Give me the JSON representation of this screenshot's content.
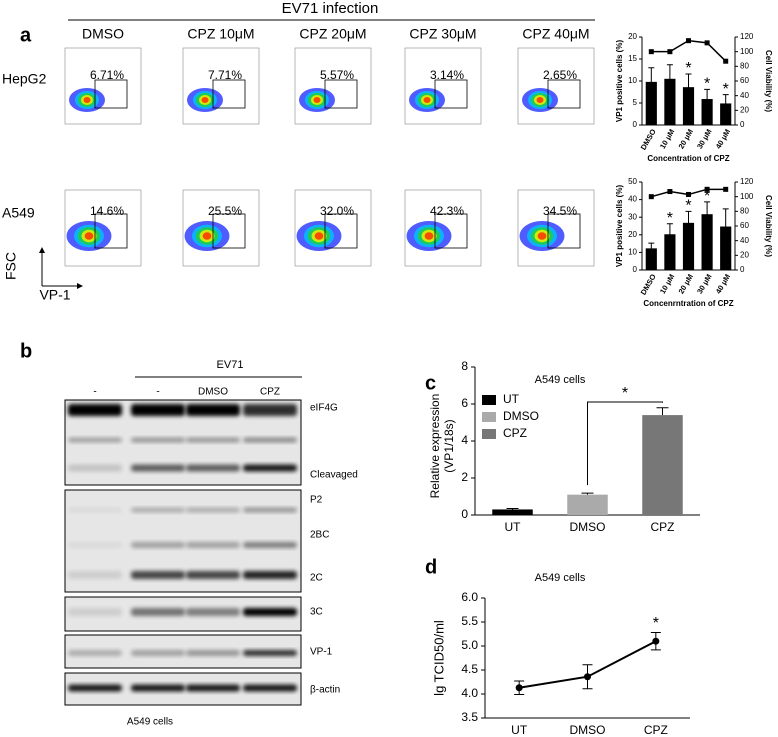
{
  "panel_labels": [
    "a",
    "b",
    "c",
    "d"
  ],
  "flow": {
    "header": "EV71 infection",
    "conditions": [
      "DMSO",
      "CPZ 10μM",
      "CPZ 20μM",
      "CPZ 30μM",
      "CPZ 40μM"
    ],
    "rows": [
      {
        "cell": "HepG2",
        "percents": [
          "6.71%",
          "7.71%",
          "5.57%",
          "3.14%",
          "2.65%"
        ]
      },
      {
        "cell": "A549",
        "percents": [
          "14.6%",
          "25.5%",
          "32.0%",
          "42.3%",
          "34.5%"
        ]
      }
    ],
    "y_axis": "FSC",
    "x_axis": "VP-1"
  },
  "blot": {
    "group": "EV71",
    "lanes": [
      "-",
      "-",
      "DMSO",
      "CPZ"
    ],
    "bands": [
      "eIF4G",
      "Cleavaged",
      "P2",
      "2BC",
      "2C",
      "3C",
      "VP-1",
      "β-actin"
    ],
    "caption": "A549 cells"
  },
  "chart_data": [
    {
      "type": "bar_line",
      "categories": [
        "DMSO",
        "10 μM",
        "20 μM",
        "30 μM",
        "40 μM"
      ],
      "xlabel": "Concentration of CPZ",
      "ylabel": "VP1 positive cells (%)",
      "y2label": "Cell Viability (%)",
      "ylim": [
        0,
        20
      ],
      "yticks": [
        0,
        5,
        10,
        15,
        20
      ],
      "y2lim": [
        0,
        120
      ],
      "y2ticks": [
        0,
        20,
        40,
        60,
        80,
        100,
        120
      ],
      "series": [
        {
          "type": "bar",
          "color": "#000000",
          "values": [
            9.8,
            10.5,
            8.6,
            5.9,
            4.9
          ],
          "errors": [
            3.2,
            3.2,
            3.0,
            2.2,
            2.0
          ],
          "significance": [
            null,
            null,
            "*",
            "*",
            "*"
          ]
        },
        {
          "type": "line",
          "axis": "y2",
          "color": "#000000",
          "values": [
            100,
            100,
            115,
            112,
            87
          ]
        }
      ]
    },
    {
      "type": "bar_line",
      "categories": [
        "DMSO",
        "10 μM",
        "20 μM",
        "30 μM",
        "40 μM"
      ],
      "xlabel": "Concenrntration of CPZ",
      "ylabel": "VP1 positive cells (%)",
      "y2label": "Cell Viability (%)",
      "ylim": [
        0,
        50
      ],
      "yticks": [
        0,
        10,
        20,
        30,
        40,
        50
      ],
      "y2lim": [
        0,
        120
      ],
      "y2ticks": [
        0,
        20,
        40,
        60,
        80,
        100,
        120
      ],
      "series": [
        {
          "type": "bar",
          "color": "#000000",
          "values": [
            12.3,
            20.3,
            26.8,
            31.7,
            24.7
          ],
          "errors": [
            3,
            6,
            6.5,
            7,
            10
          ],
          "significance": [
            null,
            "*",
            "*",
            "*",
            null
          ]
        },
        {
          "type": "line",
          "axis": "y2",
          "color": "#000000",
          "values": [
            100,
            107,
            103,
            110,
            110
          ]
        }
      ]
    },
    {
      "type": "bar",
      "title": "A549 cells",
      "ylabel": [
        "Relative expression",
        "(VP1/18s)"
      ],
      "categories": [
        "UT",
        "DMSO",
        "CPZ"
      ],
      "values": [
        0.3,
        1.1,
        5.4
      ],
      "errors": [
        0.05,
        0.08,
        0.4
      ],
      "colors": [
        "#000000",
        "#aaaaaa",
        "#777777"
      ],
      "significance": [
        null,
        null,
        "*"
      ],
      "ylim": [
        0,
        8
      ],
      "yticks": [
        0,
        2,
        4,
        6,
        8
      ],
      "legend": true
    },
    {
      "type": "line",
      "title": "A549 cells",
      "ylabel": "lg TCID50/ml",
      "categories": [
        "UT",
        "DMSO",
        "CPZ"
      ],
      "values": [
        4.13,
        4.36,
        5.1
      ],
      "errors": [
        0.14,
        0.25,
        0.18
      ],
      "significance": [
        null,
        null,
        "*"
      ],
      "color": "#000000",
      "ylim": [
        3.5,
        6.0
      ],
      "yticks": [
        3.5,
        {
          "value": 4,
          "label": "4.0"
        },
        4.5,
        {
          "value": 5,
          "label": "5.0"
        },
        5.5,
        {
          "value": 6,
          "label": "6.0"
        }
      ]
    }
  ]
}
